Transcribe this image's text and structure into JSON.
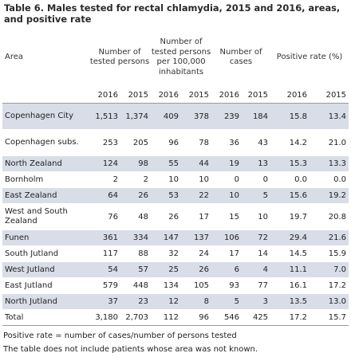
{
  "title": "Table 6. Males tested for rectal chlamydia, 2015 and 2016, areas, and positive rate",
  "headers": {
    "area": "Area",
    "tested": "Number of tested persons",
    "per100k": "Number of tested persons per 100,000 inhabitants",
    "cases": "Number of cases",
    "rate": "Positive rate (%)"
  },
  "years": [
    "2016",
    "2015",
    "2016",
    "2015",
    "2016",
    "2015",
    "2016",
    "2015"
  ],
  "rows": [
    {
      "area": "Copenhagen City",
      "values": [
        "1,513",
        "1,374",
        "409",
        "378",
        "239",
        "184",
        "15.8",
        "13.4"
      ]
    },
    {
      "area": "Copenhagen subs.",
      "values": [
        "253",
        "205",
        "96",
        "78",
        "36",
        "43",
        "14.2",
        "21.0"
      ]
    },
    {
      "area": "North Zealand",
      "values": [
        "124",
        "98",
        "55",
        "44",
        "19",
        "13",
        "15.3",
        "13.3"
      ]
    },
    {
      "area": "Bornholm",
      "values": [
        "2",
        "2",
        "10",
        "10",
        "0",
        "0",
        "0.0",
        "0.0"
      ]
    },
    {
      "area": "East Zealand",
      "values": [
        "64",
        "26",
        "53",
        "22",
        "10",
        "5",
        "15.6",
        "19.2"
      ]
    },
    {
      "area": "West and South Zealand",
      "values": [
        "76",
        "48",
        "26",
        "17",
        "15",
        "10",
        "19.7",
        "20.8"
      ]
    },
    {
      "area": "Funen",
      "values": [
        "361",
        "334",
        "147",
        "137",
        "106",
        "72",
        "29.4",
        "21.6"
      ]
    },
    {
      "area": "South Jutland",
      "values": [
        "117",
        "88",
        "32",
        "24",
        "17",
        "14",
        "14.5",
        "15.9"
      ]
    },
    {
      "area": "West Jutland",
      "values": [
        "54",
        "57",
        "25",
        "26",
        "6",
        "4",
        "11.1",
        "7.0"
      ]
    },
    {
      "area": "East Jutland",
      "values": [
        "579",
        "448",
        "134",
        "105",
        "93",
        "77",
        "16.1",
        "17.2"
      ]
    },
    {
      "area": "North Jutland",
      "values": [
        "37",
        "23",
        "12",
        "8",
        "5",
        "3",
        "13.5",
        "13.0"
      ]
    }
  ],
  "total": {
    "area": "Total",
    "values": [
      "3,180",
      "2,703",
      "112",
      "96",
      "546",
      "425",
      "17.2",
      "15.7"
    ]
  },
  "notes": [
    "Positive rate = number of cases/number of persons tested",
    "The table does not include patients whose area was not known."
  ],
  "colors": {
    "shade": "#d8dde8",
    "rule": "#9a9a9a"
  }
}
